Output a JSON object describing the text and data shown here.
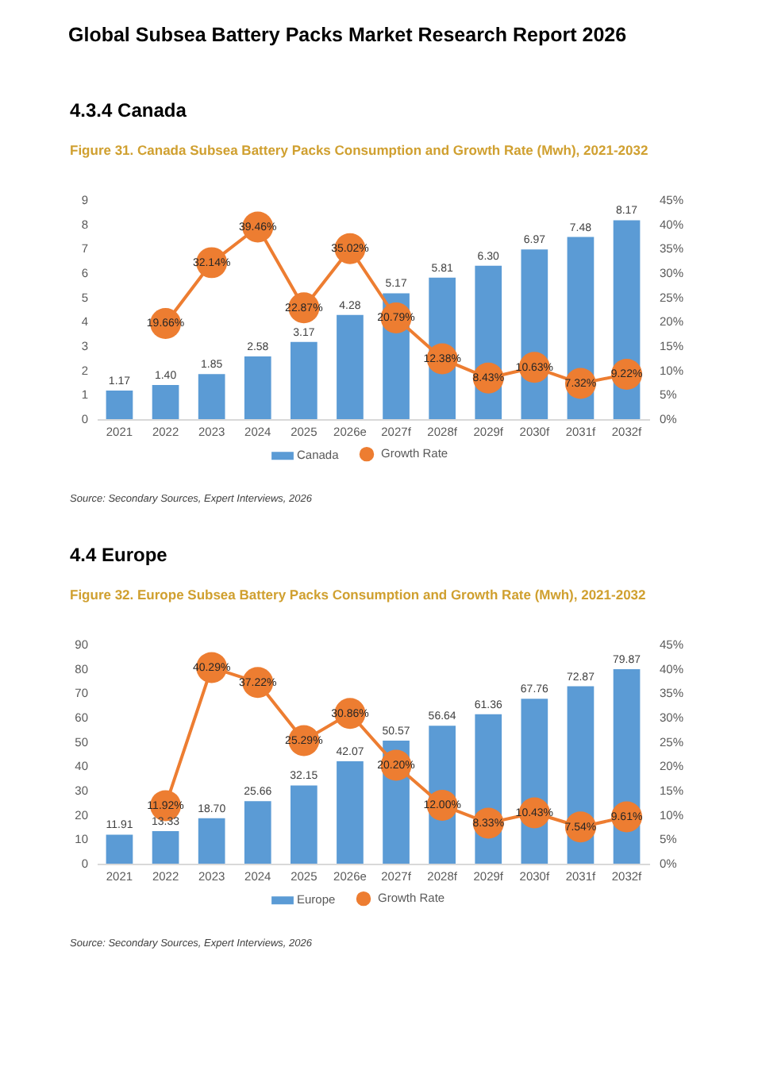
{
  "chart_data": [
    {
      "type": "other",
      "title": "Global Subsea Battery Packs Market Research Report 2026"
    },
    {
      "type": "bar",
      "title": "4.3.4 Canada",
      "subtitle": "Figure 31. Canada Subsea Battery Packs Consumption and Growth Rate (Mwh), 2021-2032",
      "categories": [
        "2021",
        "2022",
        "2023",
        "2024",
        "2025",
        "2026e",
        "2027f",
        "2028f",
        "2029f",
        "2030f",
        "2031f",
        "2032f"
      ],
      "series": [
        {
          "name": "Canada",
          "color": "#5b9bd5",
          "values": [
            1.17,
            1.4,
            1.85,
            2.58,
            3.17,
            4.28,
            5.17,
            5.81,
            6.3,
            6.97,
            7.48,
            8.17
          ],
          "value_labels": [
            "1.17",
            "1.40",
            "1.85",
            "2.58",
            "3.17",
            "4.28",
            "5.17",
            "5.81",
            "6.30",
            "6.97",
            "7.48",
            "8.17"
          ]
        },
        {
          "name": "Growth Rate",
          "type": "line",
          "axis": "y2",
          "color": "#ed7d31",
          "values": [
            null,
            19.66,
            32.14,
            39.46,
            22.87,
            35.02,
            20.79,
            12.38,
            8.43,
            10.63,
            7.32,
            9.22
          ],
          "value_labels": [
            null,
            "19.66%",
            "32.14%",
            "39.46%",
            "22.87%",
            "35.02%",
            "20.79%",
            "12.38%",
            "8.43%",
            "10.63%",
            "7.32%",
            "9.22%"
          ]
        }
      ],
      "ylim": [
        0,
        9
      ],
      "yticks": [
        0,
        1,
        2,
        3,
        4,
        5,
        6,
        7,
        8,
        9
      ],
      "y2lim": [
        0,
        45
      ],
      "y2ticks": [
        {
          "value": 0,
          "label": "0%"
        },
        {
          "value": 5,
          "label": "5%"
        },
        {
          "value": 10,
          "label": "10%"
        },
        {
          "value": 15,
          "label": "15%"
        },
        {
          "value": 20,
          "label": "20%"
        },
        {
          "value": 25,
          "label": "25%"
        },
        {
          "value": 30,
          "label": "30%"
        },
        {
          "value": 35,
          "label": "35%"
        },
        {
          "value": 40,
          "label": "40%"
        },
        {
          "value": 45,
          "label": "45%"
        }
      ],
      "grid": false,
      "legend": "bottom",
      "marker": "circle",
      "line_style": "solid",
      "annotations": [
        "Source: Secondary Sources, Expert Interviews, 2026"
      ]
    },
    {
      "type": "bar",
      "title": "4.4 Europe",
      "subtitle": "Figure 32. Europe Subsea Battery Packs Consumption and Growth Rate (Mwh), 2021-2032",
      "categories": [
        "2021",
        "2022",
        "2023",
        "2024",
        "2025",
        "2026e",
        "2027f",
        "2028f",
        "2029f",
        "2030f",
        "2031f",
        "2032f"
      ],
      "series": [
        {
          "name": "Europe",
          "color": "#5b9bd5",
          "values": [
            11.91,
            13.33,
            18.7,
            25.66,
            32.15,
            42.07,
            50.57,
            56.64,
            61.36,
            67.76,
            72.87,
            79.87
          ],
          "value_labels": [
            "11.91",
            "13.33",
            "18.70",
            "25.66",
            "32.15",
            "42.07",
            "50.57",
            "56.64",
            "61.36",
            "67.76",
            "72.87",
            "79.87"
          ]
        },
        {
          "name": "Growth Rate",
          "type": "line",
          "axis": "y2",
          "color": "#ed7d31",
          "values": [
            null,
            11.92,
            40.29,
            37.22,
            25.29,
            30.86,
            20.2,
            12.0,
            8.33,
            10.43,
            7.54,
            9.61
          ],
          "value_labels": [
            null,
            "11.92%",
            "40.29%",
            "37.22%",
            "25.29%",
            "30.86%",
            "20.20%",
            "12.00%",
            "8.33%",
            "10.43%",
            "7.54%",
            "9.61%"
          ]
        }
      ],
      "ylim": [
        0,
        90
      ],
      "yticks": [
        0,
        10,
        20,
        30,
        40,
        50,
        60,
        70,
        80,
        90
      ],
      "y2lim": [
        0,
        45
      ],
      "y2ticks": [
        {
          "value": 0,
          "label": "0%"
        },
        {
          "value": 5,
          "label": "5%"
        },
        {
          "value": 10,
          "label": "10%"
        },
        {
          "value": 15,
          "label": "15%"
        },
        {
          "value": 20,
          "label": "20%"
        },
        {
          "value": 25,
          "label": "25%"
        },
        {
          "value": 30,
          "label": "30%"
        },
        {
          "value": 35,
          "label": "35%"
        },
        {
          "value": 40,
          "label": "40%"
        },
        {
          "value": 45,
          "label": "45%"
        }
      ],
      "grid": false,
      "legend": "bottom",
      "marker": "circle",
      "line_style": "solid",
      "annotations": [
        "Source: Secondary Sources, Expert Interviews, 2026"
      ]
    }
  ]
}
